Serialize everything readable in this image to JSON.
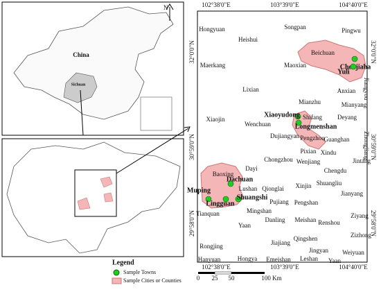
{
  "overview": {
    "north": "N",
    "china": "China",
    "sichuan": "Sichuan"
  },
  "frame": {
    "top_labels": [
      "102°38'0\"E",
      "103°39'0\"E",
      "104°40'0\"E"
    ],
    "bottom_labels": [
      "102°38'0\"E",
      "103°39'0\"E",
      "104°40'0\"E"
    ],
    "left_labels": [
      "32°0'0\"N",
      "30°59'0\"N",
      "29°58'0\"N"
    ],
    "right_labels": [
      "32°0'0\"N",
      "30°59'0\"N",
      "29°58'0\"N"
    ]
  },
  "places": [
    "Hongyuan",
    "Songpan",
    "Pingwu",
    "Heishui",
    "Beichuan",
    "Maerkang",
    "Maoxian",
    "Jiangyou",
    "Anxian",
    "Lixian",
    "Mianzhu",
    "Mianyang",
    "Shifang",
    "Deyang",
    "Xiaojin",
    "Wenchuan",
    "Zhongjiang",
    "Dujiangyan",
    "Pengzhou",
    "Guanghan",
    "Pixian",
    "Xindu",
    "Chongzhou",
    "Dayi",
    "Wenjiang",
    "Jintang",
    "Chengdu",
    "Baoxing",
    "Lushan",
    "Qionglai",
    "Xinjin",
    "Shuangliu",
    "Jianyang",
    "Pujiang",
    "Pengshan",
    "Tianquan",
    "Mingshan",
    "Ziyang",
    "Yaan",
    "Danling",
    "Meishan",
    "Renshou",
    "Zizhong",
    "Qingshen",
    "Rongjing",
    "Hanyuan",
    "Hongya",
    "Jiajiang",
    "Jingyan",
    "Weiyuan",
    "Emeishan",
    "Leshan",
    "Yaan"
  ],
  "towns": [
    "Chenjiaba",
    "Yuli",
    "Xiaoyudong",
    "Longmenshan",
    "Dachuan",
    "Muping",
    "Shuangshi",
    "Lingguan"
  ],
  "scale": {
    "ticks": [
      "0",
      "25",
      "50",
      "100 Km"
    ]
  },
  "legend": {
    "title": "Legend",
    "items": [
      "Sample Towns",
      "Sample Cities or Counties"
    ]
  }
}
